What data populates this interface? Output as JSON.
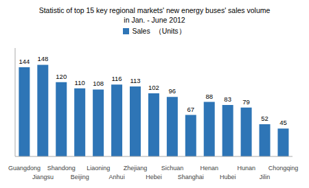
{
  "chart_data": {
    "type": "bar",
    "title": "Statistic of top 15 key regional markets' new energy buses' sales volume",
    "subtitle": "in Jan. - June 2012",
    "ylabel": "（Units）",
    "categories": [
      "Guangdong",
      "Jiangsu",
      "Shandong",
      "Beijing",
      "Liaoning",
      "Anhui",
      "Zhejiang",
      "Hebei",
      "Sichuan",
      "Shanghai",
      "Henan",
      "Hubei",
      "Hunan",
      "Jilin",
      "Chongqing"
    ],
    "series": [
      {
        "name": "Sales",
        "color": "#2E75B6",
        "values": [
          144,
          148,
          120,
          110,
          108,
          116,
          113,
          102,
          96,
          67,
          88,
          83,
          79,
          52,
          45
        ]
      }
    ],
    "ylim": [
      0,
      175
    ],
    "data_labels": true,
    "tick_labels": "x",
    "grid": false,
    "legend": "top"
  }
}
